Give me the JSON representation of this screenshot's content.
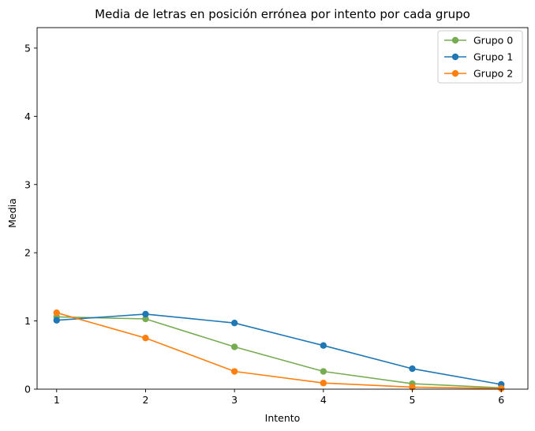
{
  "chart_data": {
    "type": "line",
    "title": "Media de letras en posición errónea por intento por cada grupo",
    "xlabel": "Intento",
    "ylabel": "Media",
    "x": [
      1,
      2,
      3,
      4,
      5,
      6
    ],
    "xticks": [
      "1",
      "2",
      "3",
      "4",
      "5",
      "6"
    ],
    "yticks": [
      "0",
      "1",
      "2",
      "3",
      "4",
      "5"
    ],
    "xlim": [
      0.78,
      6.3
    ],
    "ylim": [
      0,
      5.3
    ],
    "grid": false,
    "legend_position": "top-right",
    "series": [
      {
        "name": "Grupo 0",
        "color": "#77ac53",
        "values": [
          1.06,
          1.03,
          0.62,
          0.26,
          0.08,
          0.02
        ]
      },
      {
        "name": "Grupo 1",
        "color": "#1f77b4",
        "values": [
          1.01,
          1.1,
          0.97,
          0.64,
          0.3,
          0.07
        ]
      },
      {
        "name": "Grupo 2",
        "color": "#ff7f0e",
        "values": [
          1.12,
          0.75,
          0.26,
          0.09,
          0.03,
          0.01
        ]
      }
    ]
  }
}
